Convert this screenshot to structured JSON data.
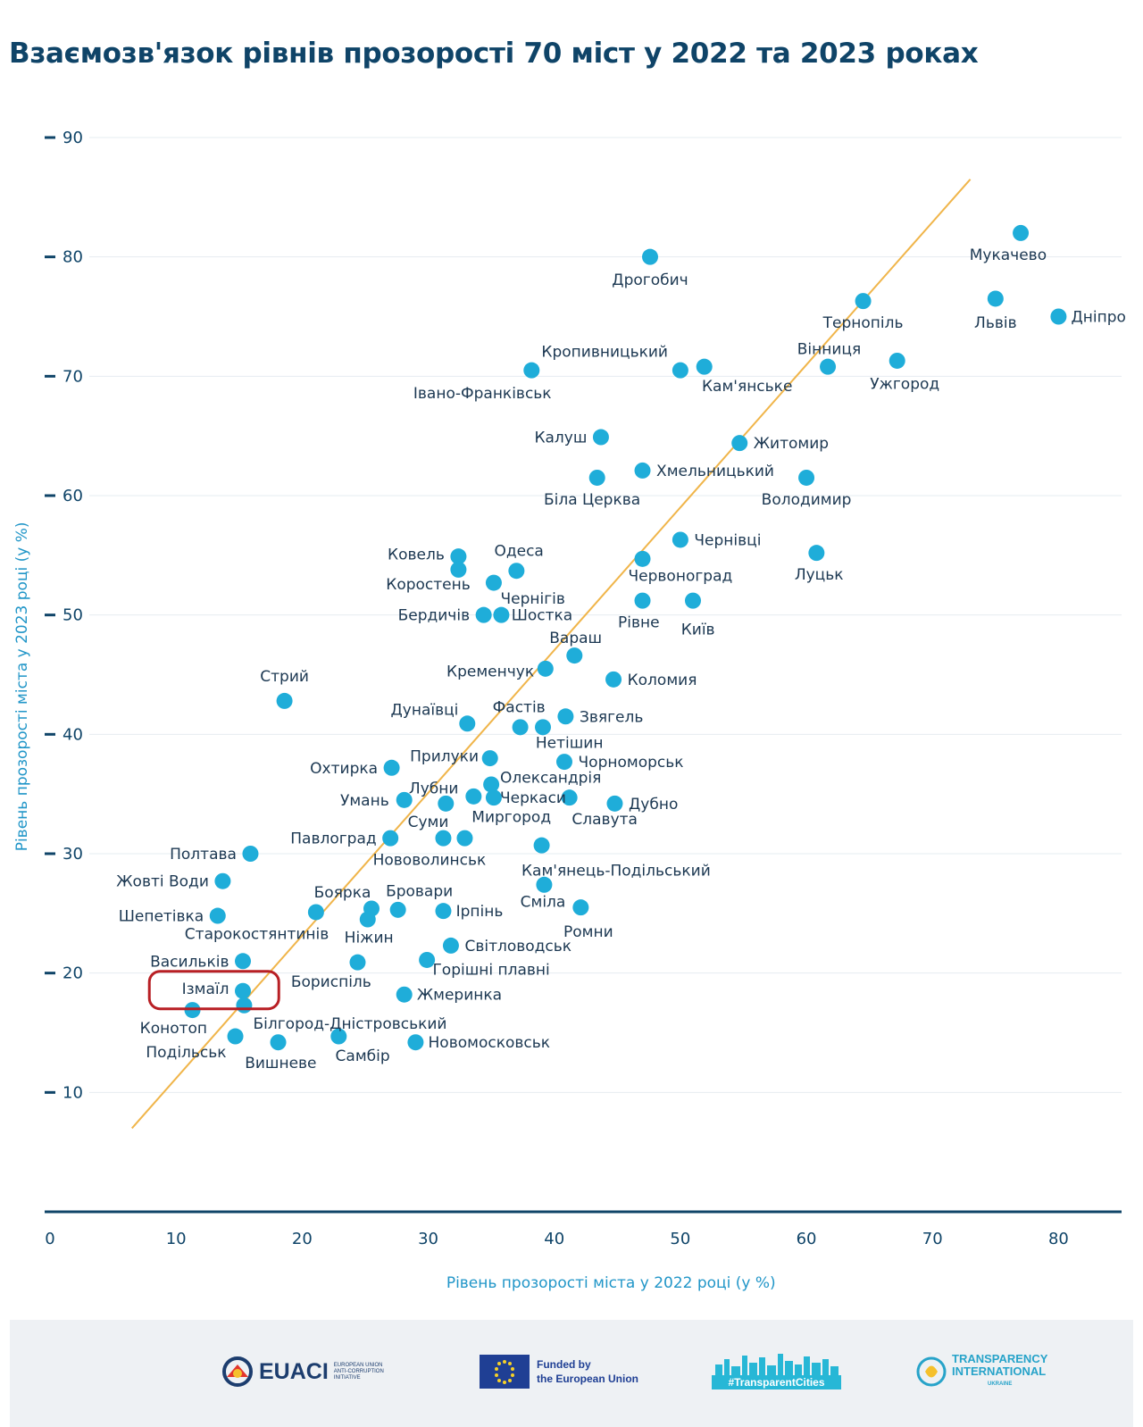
{
  "title": "Взаємозв'язок рівнів прозорості 70 міст у 2022 та 2023 роках",
  "colors": {
    "point": "#1fadd9",
    "trend": "#f0b54a",
    "axis": "#0f4468",
    "text": "#1c3852",
    "grid": "#e6ecf1",
    "highlight": "#b81f24"
  },
  "chart_data": {
    "type": "scatter",
    "xlabel": "Рівень прозорості міста у 2022 році (у %)",
    "ylabel": "Рівень прозорості міста у 2023 році (у %)",
    "xlim": [
      0,
      85
    ],
    "ylim": [
      0,
      90
    ],
    "xticks": [
      0,
      10,
      20,
      30,
      40,
      50,
      60,
      70,
      80
    ],
    "yticks": [
      10,
      20,
      30,
      40,
      50,
      60,
      70,
      80,
      90
    ],
    "trendline": {
      "x": [
        6.5,
        73
      ],
      "y": [
        7,
        86.5
      ]
    },
    "highlight": "Ізмаїл",
    "points": [
      {
        "name": "Мукачево",
        "x": 77,
        "y": 82,
        "lx": 76,
        "ly": 80.2,
        "anchor": "middle"
      },
      {
        "name": "Дрогобич",
        "x": 47.6,
        "y": 80,
        "lx": 47.6,
        "ly": 78.1,
        "anchor": "middle"
      },
      {
        "name": "Тернопіль",
        "x": 64.5,
        "y": 76.3,
        "lx": 64.5,
        "ly": 74.5,
        "anchor": "middle"
      },
      {
        "name": "Львів",
        "x": 75,
        "y": 76.5,
        "lx": 75,
        "ly": 74.5,
        "anchor": "middle"
      },
      {
        "name": "Дніпро",
        "x": 80,
        "y": 75,
        "lx": 81,
        "ly": 75,
        "anchor": "start"
      },
      {
        "name": "Кропивницький",
        "x": 50,
        "y": 70.5,
        "lx": 44,
        "ly": 72.1,
        "anchor": "middle"
      },
      {
        "name": "Вінниця",
        "x": 61.7,
        "y": 70.8,
        "lx": 61.8,
        "ly": 72.3,
        "anchor": "middle"
      },
      {
        "name": "Кам'янське",
        "x": 51.9,
        "y": 70.8,
        "lx": 55.3,
        "ly": 69.2,
        "anchor": "middle"
      },
      {
        "name": "Ужгород",
        "x": 67.2,
        "y": 71.3,
        "lx": 67.8,
        "ly": 69.4,
        "anchor": "middle"
      },
      {
        "name": "Івано-Франківськ",
        "x": 38.2,
        "y": 70.5,
        "lx": 34.3,
        "ly": 68.6,
        "anchor": "middle"
      },
      {
        "name": "Калуш",
        "x": 43.7,
        "y": 64.9,
        "lx": 42.6,
        "ly": 64.9,
        "anchor": "end"
      },
      {
        "name": "Житомир",
        "x": 54.7,
        "y": 64.4,
        "lx": 55.8,
        "ly": 64.4,
        "anchor": "start"
      },
      {
        "name": "Хмельницький",
        "x": 47,
        "y": 62.1,
        "lx": 48.1,
        "ly": 62.1,
        "anchor": "start"
      },
      {
        "name": "Біла Церква",
        "x": 43.4,
        "y": 61.5,
        "lx": 43,
        "ly": 59.7,
        "anchor": "middle"
      },
      {
        "name": "Володимир",
        "x": 60,
        "y": 61.5,
        "lx": 60,
        "ly": 59.7,
        "anchor": "middle"
      },
      {
        "name": "Чернівці",
        "x": 50,
        "y": 56.3,
        "lx": 51.1,
        "ly": 56.3,
        "anchor": "start"
      },
      {
        "name": "Ковель",
        "x": 32.4,
        "y": 54.9,
        "lx": 31.3,
        "ly": 55.1,
        "anchor": "end"
      },
      {
        "name": "Одеса",
        "x": 37,
        "y": 53.7,
        "lx": 37.2,
        "ly": 55.4,
        "anchor": "middle"
      },
      {
        "name": "Луцьк",
        "x": 60.8,
        "y": 55.2,
        "lx": 61,
        "ly": 53.4,
        "anchor": "middle"
      },
      {
        "name": "Червоноград",
        "x": 47,
        "y": 54.7,
        "lx": 50,
        "ly": 53.3,
        "anchor": "middle"
      },
      {
        "name": "Коростень",
        "x": 32.4,
        "y": 53.8,
        "lx": 30,
        "ly": 52.6,
        "anchor": "middle"
      },
      {
        "name": "Чернігів",
        "x": 35.2,
        "y": 52.7,
        "lx": 38.3,
        "ly": 51.4,
        "anchor": "middle"
      },
      {
        "name": "Рівне",
        "x": 47,
        "y": 51.2,
        "lx": 46.7,
        "ly": 49.4,
        "anchor": "middle"
      },
      {
        "name": "Київ",
        "x": 51,
        "y": 51.2,
        "lx": 51.4,
        "ly": 48.8,
        "anchor": "middle"
      },
      {
        "name": "Бердичів",
        "x": 34.4,
        "y": 50,
        "lx": 33.3,
        "ly": 50,
        "anchor": "end"
      },
      {
        "name": "Шостка",
        "x": 35.8,
        "y": 50,
        "lx": 36.6,
        "ly": 50,
        "anchor": "start"
      },
      {
        "name": "Вараш",
        "x": 41.6,
        "y": 46.6,
        "lx": 41.7,
        "ly": 48.1,
        "anchor": "middle"
      },
      {
        "name": "Кременчук",
        "x": 39.3,
        "y": 45.5,
        "lx": 38.4,
        "ly": 45.3,
        "anchor": "end"
      },
      {
        "name": "Коломия",
        "x": 44.7,
        "y": 44.6,
        "lx": 45.8,
        "ly": 44.6,
        "anchor": "start"
      },
      {
        "name": "Стрий",
        "x": 18.6,
        "y": 42.8,
        "lx": 18.6,
        "ly": 44.9,
        "anchor": "middle"
      },
      {
        "name": "Дунаївці",
        "x": 33.1,
        "y": 40.9,
        "lx": 32.4,
        "ly": 42.1,
        "anchor": "end"
      },
      {
        "name": "Фастів",
        "x": 37.3,
        "y": 40.6,
        "lx": 37.2,
        "ly": 42.3,
        "anchor": "middle"
      },
      {
        "name": "Нетішин",
        "x": 39.1,
        "y": 40.6,
        "lx": 41.2,
        "ly": 39.3,
        "anchor": "middle"
      },
      {
        "name": "Звягель",
        "x": 40.9,
        "y": 41.5,
        "lx": 42,
        "ly": 41.5,
        "anchor": "start"
      },
      {
        "name": "Охтирка",
        "x": 27.1,
        "y": 37.2,
        "lx": 26,
        "ly": 37.2,
        "anchor": "end"
      },
      {
        "name": "Прилуки",
        "x": 34.9,
        "y": 38,
        "lx": 34,
        "ly": 38.2,
        "anchor": "end"
      },
      {
        "name": "Чорноморськ",
        "x": 40.8,
        "y": 37.7,
        "lx": 41.9,
        "ly": 37.7,
        "anchor": "start"
      },
      {
        "name": "Олександрія",
        "x": 35,
        "y": 35.8,
        "lx": 35.7,
        "ly": 36.4,
        "anchor": "start"
      },
      {
        "name": "Лубни",
        "x": 33.6,
        "y": 34.8,
        "lx": 32.4,
        "ly": 35.5,
        "anchor": "end"
      },
      {
        "name": "Черкаси",
        "x": 35.2,
        "y": 34.7,
        "lx": 35.7,
        "ly": 34.7,
        "anchor": "start"
      },
      {
        "name": "Умань",
        "x": 28.1,
        "y": 34.5,
        "lx": 26.9,
        "ly": 34.5,
        "anchor": "end"
      },
      {
        "name": "Дубно",
        "x": 44.8,
        "y": 34.2,
        "lx": 45.9,
        "ly": 34.2,
        "anchor": "start"
      },
      {
        "name": "Славута",
        "x": 41.2,
        "y": 34.7,
        "lx": 44,
        "ly": 32.9,
        "anchor": "middle"
      },
      {
        "name": "Миргород",
        "x": 31.4,
        "y": 34.2,
        "lx": 36.6,
        "ly": 33.1,
        "anchor": "middle"
      },
      {
        "name": "Суми",
        "x": 31.2,
        "y": 31.3,
        "lx": 30,
        "ly": 32.7,
        "anchor": "middle"
      },
      {
        "name": "Павлоград",
        "x": 27,
        "y": 31.3,
        "lx": 25.9,
        "ly": 31.3,
        "anchor": "end"
      },
      {
        "name": "Нововолинськ",
        "x": 32.9,
        "y": 31.3,
        "lx": 30.1,
        "ly": 29.5,
        "anchor": "middle"
      },
      {
        "name": "Кам'янець-Подільський",
        "x": 39,
        "y": 30.7,
        "lx": 44.9,
        "ly": 28.6,
        "anchor": "middle"
      },
      {
        "name": "Полтава",
        "x": 15.9,
        "y": 30,
        "lx": 14.8,
        "ly": 30,
        "anchor": "end"
      },
      {
        "name": "Жовті Води",
        "x": 13.7,
        "y": 27.7,
        "lx": 12.6,
        "ly": 27.7,
        "anchor": "end"
      },
      {
        "name": "Боярка",
        "x": 25.5,
        "y": 25.4,
        "lx": 23.2,
        "ly": 26.8,
        "anchor": "middle"
      },
      {
        "name": "Бровари",
        "x": 27.6,
        "y": 25.3,
        "lx": 29.3,
        "ly": 26.9,
        "anchor": "middle"
      },
      {
        "name": "Сміла",
        "x": 39.2,
        "y": 27.4,
        "lx": 39.1,
        "ly": 26,
        "anchor": "middle"
      },
      {
        "name": "Ромни",
        "x": 42.1,
        "y": 25.5,
        "lx": 42.7,
        "ly": 23.5,
        "anchor": "middle"
      },
      {
        "name": "Ірпінь",
        "x": 31.2,
        "y": 25.2,
        "lx": 32.2,
        "ly": 25.2,
        "anchor": "start"
      },
      {
        "name": "Шепетівка",
        "x": 13.3,
        "y": 24.8,
        "lx": 12.2,
        "ly": 24.8,
        "anchor": "end"
      },
      {
        "name": "Ніжин",
        "x": 25.2,
        "y": 24.5,
        "lx": 25.3,
        "ly": 23,
        "anchor": "middle"
      },
      {
        "name": "Старокостянтинів",
        "x": 21.1,
        "y": 25.1,
        "lx": 16.4,
        "ly": 23.3,
        "anchor": "middle"
      },
      {
        "name": "Світловодськ",
        "x": 31.8,
        "y": 22.3,
        "lx": 32.9,
        "ly": 22.3,
        "anchor": "start"
      },
      {
        "name": "Васильків",
        "x": 15.3,
        "y": 21,
        "lx": 14.2,
        "ly": 21,
        "anchor": "end"
      },
      {
        "name": "Горішні плавні",
        "x": 29.9,
        "y": 21.1,
        "lx": 35,
        "ly": 20.3,
        "anchor": "middle"
      },
      {
        "name": "Бориспіль",
        "x": 24.4,
        "y": 20.9,
        "lx": 22.3,
        "ly": 19.3,
        "anchor": "middle"
      },
      {
        "name": "Ізмаїл",
        "x": 15.3,
        "y": 18.5,
        "lx": 14.2,
        "ly": 18.7,
        "anchor": "end"
      },
      {
        "name": "Жмеринка",
        "x": 28.1,
        "y": 18.2,
        "lx": 29.1,
        "ly": 18.2,
        "anchor": "start"
      },
      {
        "name": "Конотоп",
        "x": 11.3,
        "y": 16.9,
        "lx": 9.8,
        "ly": 15.4,
        "anchor": "middle"
      },
      {
        "name": "Білгород-Дністровський",
        "x": 15.4,
        "y": 17.3,
        "lx": 23.8,
        "ly": 15.8,
        "anchor": "middle"
      },
      {
        "name": "Подільськ",
        "x": 14.7,
        "y": 14.7,
        "lx": 10.8,
        "ly": 13.4,
        "anchor": "middle"
      },
      {
        "name": "Вишневе",
        "x": 18.1,
        "y": 14.2,
        "lx": 18.3,
        "ly": 12.5,
        "anchor": "middle"
      },
      {
        "name": "Самбір",
        "x": 22.9,
        "y": 14.7,
        "lx": 24.8,
        "ly": 13.1,
        "anchor": "middle"
      },
      {
        "name": "Новомосковськ",
        "x": 29,
        "y": 14.2,
        "lx": 30,
        "ly": 14.2,
        "anchor": "start"
      }
    ]
  },
  "footer": {
    "euaci": {
      "name": "EUACI",
      "sub": "EUROPEAN UNION ANTI-CORRUPTION INITIATIVE"
    },
    "eu": {
      "line1": "Funded by",
      "line2": "the European Union"
    },
    "tc": {
      "tag": "#TransparentCities"
    },
    "ti": {
      "line1": "TRANSPARENCY",
      "line2": "INTERNATIONAL",
      "sub": "UKRAINE"
    }
  }
}
